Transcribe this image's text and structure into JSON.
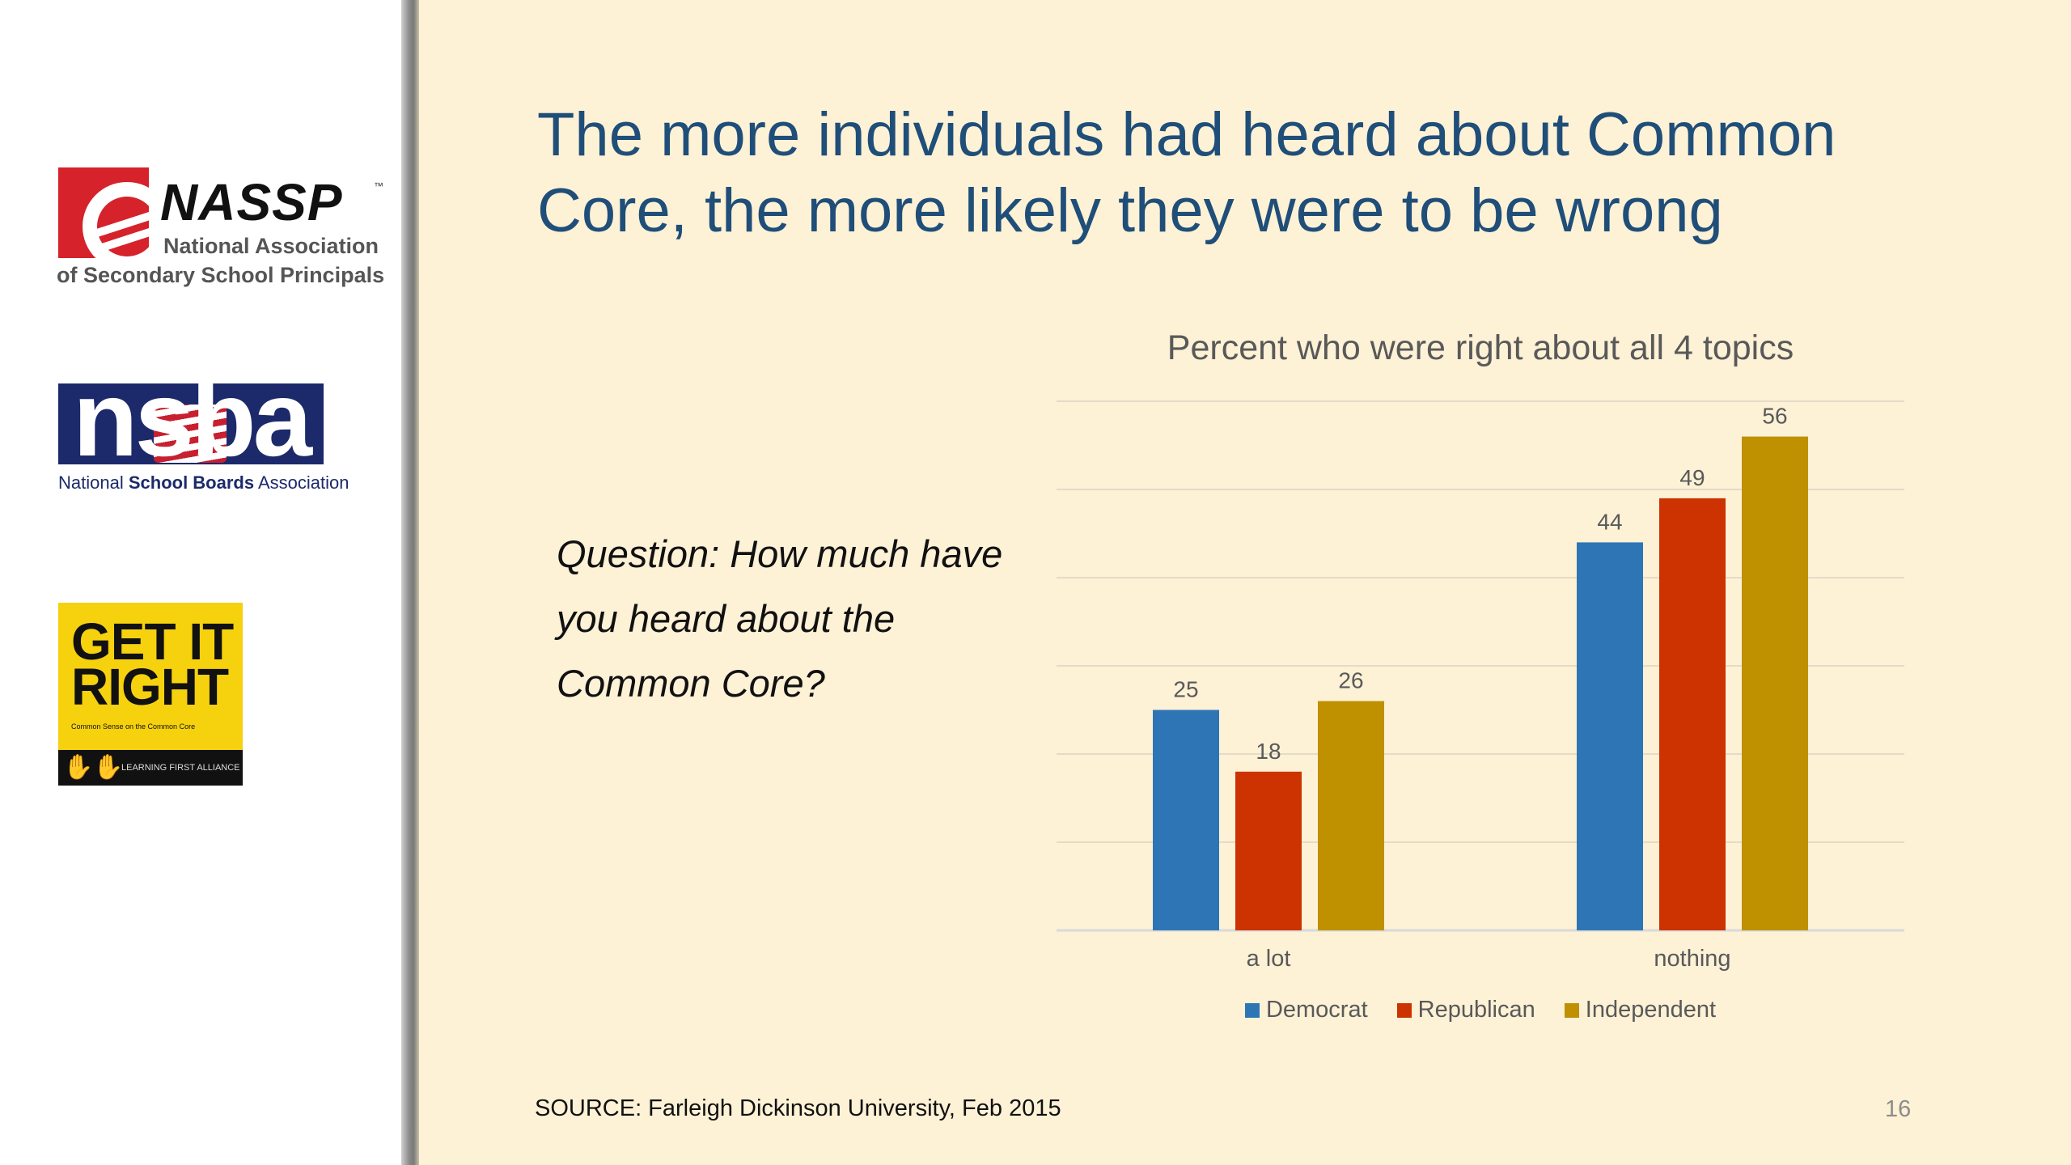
{
  "sidebar": {
    "logos": {
      "nassp": {
        "name": "NASSP",
        "tm": "™",
        "line1": "National Association",
        "line2": "of Secondary School Principals"
      },
      "nsba": {
        "word": "nsba",
        "sub_regular1": "National ",
        "sub_bold": "School Boards",
        "sub_regular2": " Association"
      },
      "get_it_right": {
        "title_line1": "GET IT",
        "title_line2": "RIGHT",
        "tagline": "Common Sense on the Common Core",
        "band_text": "LEARNING FIRST ALLIANCE"
      }
    }
  },
  "slide": {
    "title": "The more individuals had heard about Common Core, the more likely they were to be wrong",
    "question": "Question: How much have you heard about the Common Core?",
    "source": "SOURCE: Farleigh Dickinson University, Feb 2015",
    "page_number": "16"
  },
  "colors": {
    "Democrat": "#2e75b6",
    "Republican": "#cc3300",
    "Independent": "#bf9000",
    "gridline": "#e4dcc8",
    "axis": "#d9d9d9",
    "label": "#595959"
  },
  "chart_data": {
    "type": "bar",
    "title": "Percent who were right about all 4 topics",
    "categories": [
      "a lot",
      "nothing"
    ],
    "series": [
      {
        "name": "Democrat",
        "values": [
          25,
          44
        ]
      },
      {
        "name": "Republican",
        "values": [
          18,
          49
        ]
      },
      {
        "name": "Independent",
        "values": [
          26,
          56
        ]
      }
    ],
    "ylim": [
      0,
      60
    ],
    "grid": true,
    "legend_position": "bottom"
  }
}
